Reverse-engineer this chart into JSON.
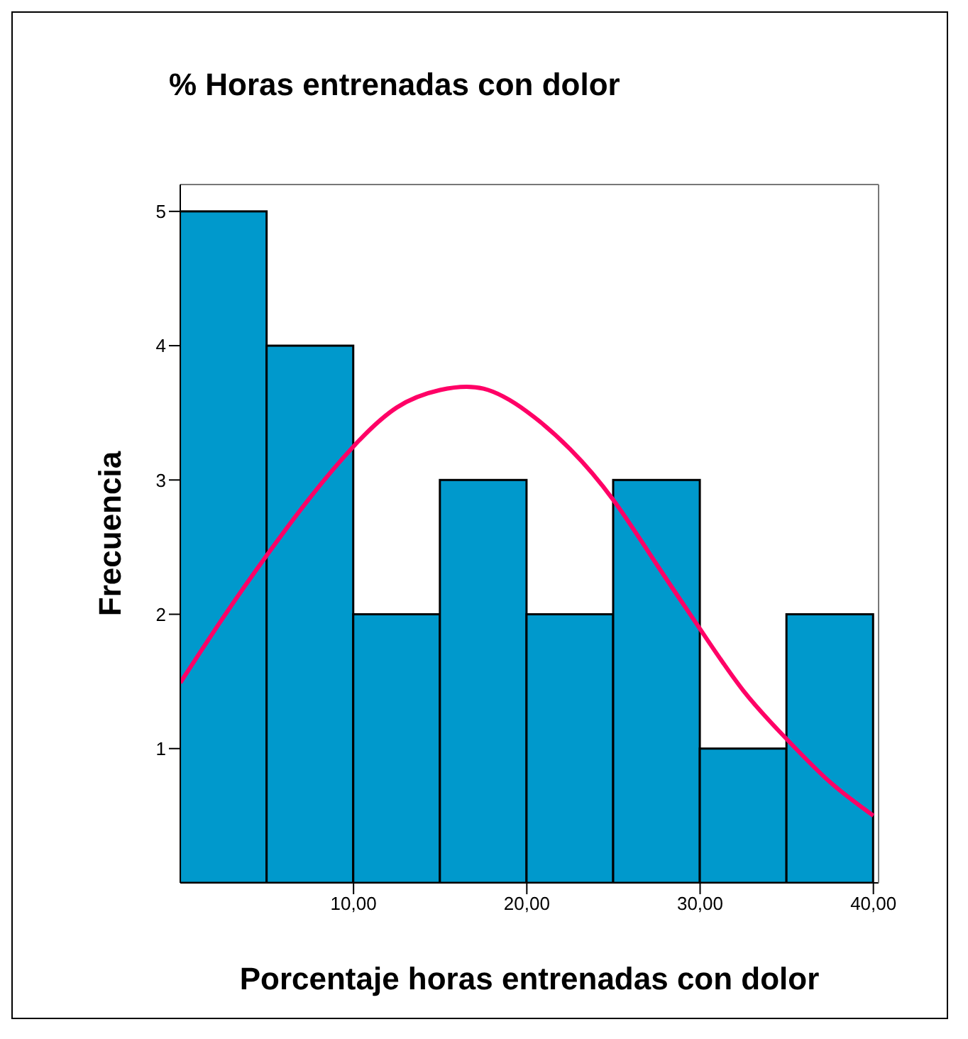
{
  "chart_data": {
    "type": "histogram",
    "title": "% Horas entrenadas con dolor",
    "xlabel": "Porcentaje horas entrenadas con dolor",
    "ylabel": "Frecuencia",
    "bins": [
      0,
      5,
      10,
      15,
      20,
      25,
      30,
      35,
      40
    ],
    "values": [
      5,
      4,
      2,
      3,
      2,
      3,
      1,
      2
    ],
    "color": "#0099cc",
    "series": [
      {
        "type": "line",
        "color": "#ff0066",
        "x": [
          0,
          2.5,
          5,
          7.5,
          10,
          12.5,
          15,
          17.5,
          20,
          22.5,
          25,
          27.5,
          30,
          32.5,
          35,
          37.5,
          40
        ],
        "values": [
          1.49,
          1.98,
          2.44,
          2.87,
          3.25,
          3.54,
          3.67,
          3.68,
          3.51,
          3.23,
          2.85,
          2.37,
          1.89,
          1.43,
          1.07,
          0.75,
          0.5
        ]
      }
    ],
    "xlim": [
      0,
      40.3
    ],
    "xticks": [
      {
        "value": 10,
        "label": "10,00"
      },
      {
        "value": 20,
        "label": "20,00"
      },
      {
        "value": 30,
        "label": "30,00"
      },
      {
        "value": 40,
        "label": "40,00"
      }
    ],
    "ylim": [
      0,
      5.2
    ],
    "yticks": [
      1,
      2,
      3,
      4,
      5
    ],
    "line_style": "solid",
    "marker": "none"
  }
}
